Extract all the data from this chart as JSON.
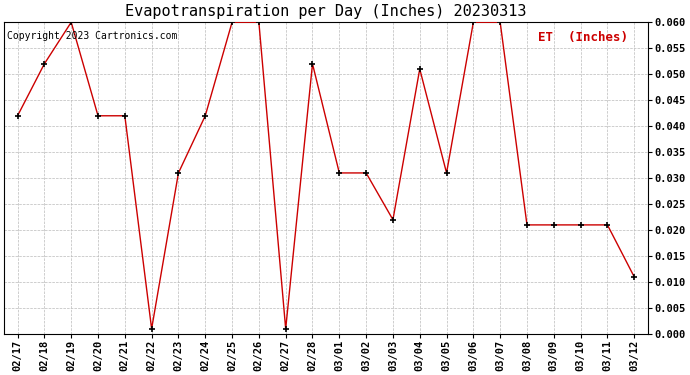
{
  "title": "Evapotranspiration per Day (Inches) 20230313",
  "copyright": "Copyright 2023 Cartronics.com",
  "legend_label": "ET  (Inches)",
  "dates": [
    "02/17",
    "02/18",
    "02/19",
    "02/20",
    "02/21",
    "02/22",
    "02/23",
    "02/24",
    "02/25",
    "02/26",
    "02/27",
    "02/28",
    "03/01",
    "03/02",
    "03/03",
    "03/04",
    "03/05",
    "03/06",
    "03/07",
    "03/08",
    "03/09",
    "03/10",
    "03/11",
    "03/12"
  ],
  "values": [
    0.042,
    0.052,
    0.06,
    0.042,
    0.042,
    0.001,
    0.031,
    0.042,
    0.06,
    0.06,
    0.001,
    0.052,
    0.031,
    0.031,
    0.022,
    0.051,
    0.031,
    0.06,
    0.06,
    0.021,
    0.021,
    0.021,
    0.021,
    0.011
  ],
  "line_color": "#cc0000",
  "marker_color": "black",
  "background_color": "#ffffff",
  "grid_color": "#bbbbbb",
  "ylim": [
    0.0,
    0.06
  ],
  "yticks": [
    0.0,
    0.005,
    0.01,
    0.015,
    0.02,
    0.025,
    0.03,
    0.035,
    0.04,
    0.045,
    0.05,
    0.055,
    0.06
  ],
  "title_fontsize": 11,
  "copyright_fontsize": 7,
  "legend_fontsize": 9,
  "tick_fontsize": 7.5
}
